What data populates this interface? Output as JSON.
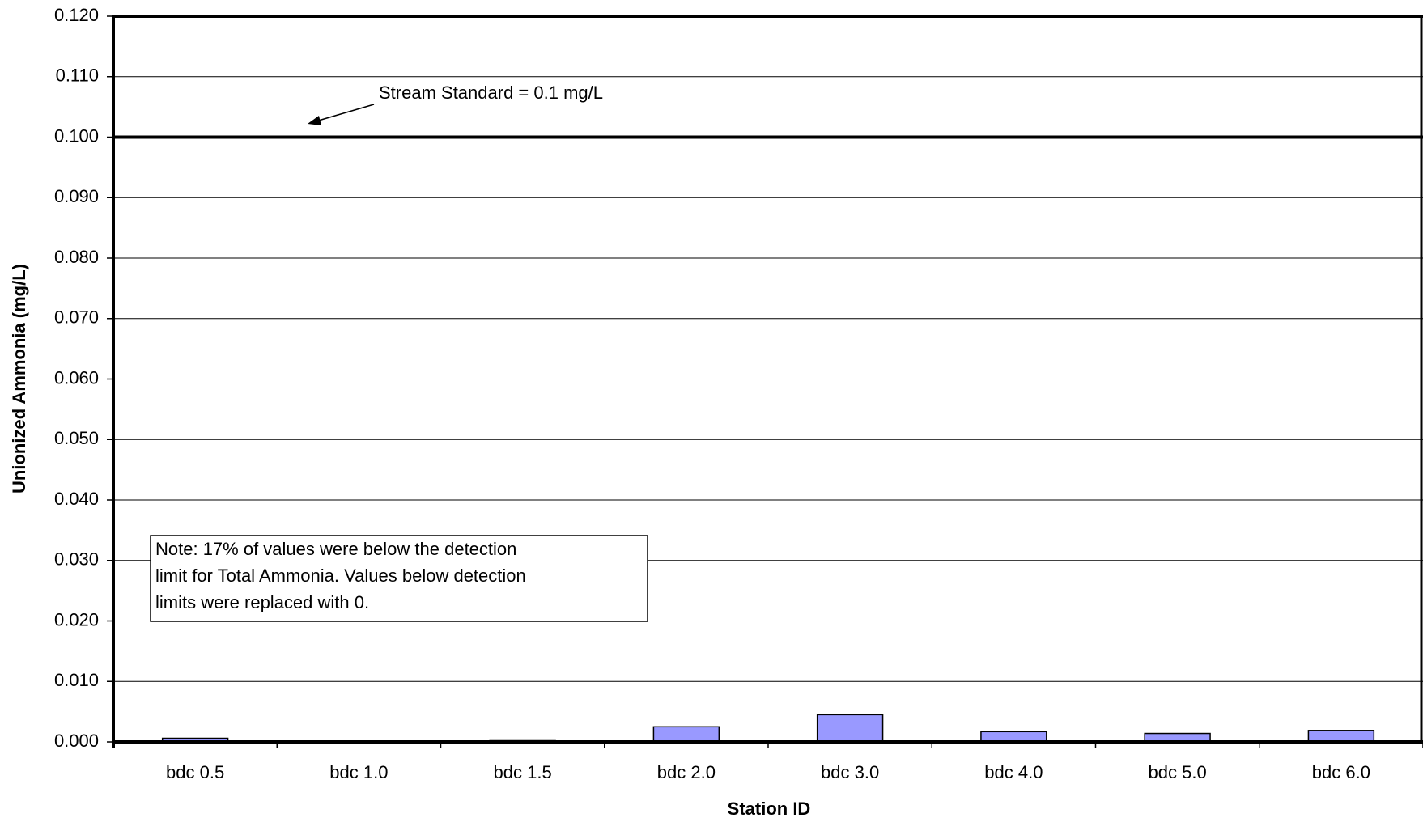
{
  "chart_data": {
    "type": "bar",
    "x_label": "Station ID",
    "y_label": "Unionized Ammonia (mg/L)",
    "categories": [
      "bdc 0.5",
      "bdc 1.0",
      "bdc 1.5",
      "bdc 2.0",
      "bdc 3.0",
      "bdc 4.0",
      "bdc 5.0",
      "bdc 6.0"
    ],
    "values": [
      0.0006,
      0.0001,
      0.0002,
      0.0025,
      0.0045,
      0.0017,
      0.0014,
      0.0019
    ],
    "color": "#9999ff",
    "ylim": [
      0,
      0.12
    ],
    "yticks": [
      {
        "value": 0,
        "label": "0.000"
      },
      {
        "value": 0.01,
        "label": "0.010"
      },
      {
        "value": 0.02,
        "label": "0.020"
      },
      {
        "value": 0.03,
        "label": "0.030"
      },
      {
        "value": 0.04,
        "label": "0.040"
      },
      {
        "value": 0.05,
        "label": "0.050"
      },
      {
        "value": 0.06,
        "label": "0.060"
      },
      {
        "value": 0.07,
        "label": "0.070"
      },
      {
        "value": 0.08,
        "label": "0.080"
      },
      {
        "value": 0.09,
        "label": "0.090"
      },
      {
        "value": 0.1,
        "label": "0.100"
      },
      {
        "value": 0.11,
        "label": "0.110"
      },
      {
        "value": 0.12,
        "label": "0.120"
      }
    ],
    "grid": true,
    "reference_line": {
      "value": 0.1,
      "label": "Stream Standard = 0.1 mg/L"
    },
    "note": [
      "Note:  17% of values were below the detection",
      "limit for Total Ammonia. Values below detection",
      "limits were replaced with 0."
    ]
  }
}
